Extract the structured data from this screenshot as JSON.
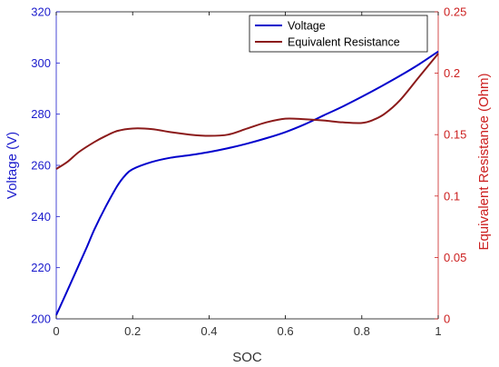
{
  "chart_data": {
    "type": "line",
    "xlabel": "SOC",
    "ylabel_left": "Voltage (V)",
    "ylabel_right": "Equivalent Resistance (Ohm)",
    "xlim": [
      0,
      1
    ],
    "ylim_left": [
      200,
      320
    ],
    "ylim_right": [
      0,
      0.25
    ],
    "x_ticks": [
      "0",
      "0.2",
      "0.4",
      "0.6",
      "0.8",
      "1"
    ],
    "y_left_ticks": [
      "200",
      "220",
      "240",
      "260",
      "280",
      "300",
      "320"
    ],
    "y_right_ticks": [
      "0",
      "0.05",
      "0.1",
      "0.15",
      "0.2",
      "0.25"
    ],
    "legend": {
      "position": "top-right",
      "entries": [
        "Voltage",
        "Equivalent Resistance"
      ]
    },
    "grid": false,
    "colors": {
      "left_axis": "#1a1acc",
      "right_axis": "#cc2020",
      "voltage": "#0000cc",
      "resistance": "#8b1a1a"
    },
    "series": [
      {
        "name": "Voltage",
        "axis": "left",
        "x": [
          0,
          0.02,
          0.05,
          0.08,
          0.1,
          0.13,
          0.16,
          0.18,
          0.2,
          0.25,
          0.3,
          0.35,
          0.4,
          0.45,
          0.5,
          0.55,
          0.6,
          0.65,
          0.7,
          0.75,
          0.8,
          0.85,
          0.9,
          0.95,
          1.0
        ],
        "values": [
          201.5,
          208,
          218,
          228,
          235,
          244,
          252,
          256,
          258.5,
          261.3,
          263,
          264,
          265.2,
          266.7,
          268.5,
          270.6,
          273,
          276,
          279.5,
          283,
          286.8,
          290.8,
          295,
          299.5,
          304.5
        ]
      },
      {
        "name": "Equivalent Resistance",
        "axis": "right",
        "x": [
          0,
          0.03,
          0.06,
          0.1,
          0.13,
          0.16,
          0.2,
          0.25,
          0.3,
          0.35,
          0.4,
          0.45,
          0.5,
          0.55,
          0.6,
          0.65,
          0.7,
          0.75,
          0.8,
          0.83,
          0.86,
          0.9,
          0.95,
          1.0
        ],
        "values": [
          0.122,
          0.128,
          0.136,
          0.144,
          0.149,
          0.153,
          0.155,
          0.1545,
          0.152,
          0.15,
          0.149,
          0.15,
          0.155,
          0.16,
          0.163,
          0.1625,
          0.1615,
          0.16,
          0.1595,
          0.162,
          0.167,
          0.178,
          0.197,
          0.216
        ]
      }
    ]
  }
}
